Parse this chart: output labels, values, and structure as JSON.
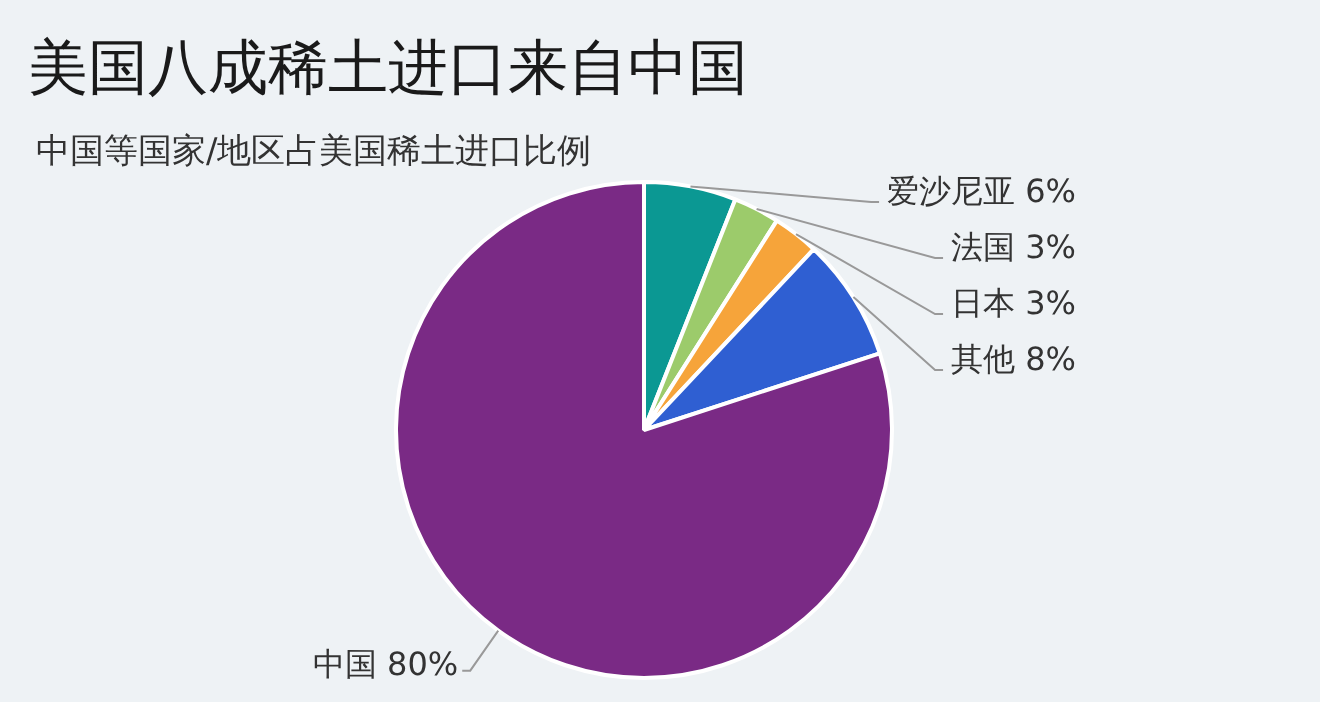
{
  "chart_data": {
    "type": "pie",
    "title": "美国八成稀土进口来自中国",
    "subtitle": "中国等国家/地区占美国稀土进口比例",
    "categories": [
      "爱沙尼亚",
      "法国",
      "日本",
      "其他",
      "中国"
    ],
    "values": [
      6,
      3,
      3,
      8,
      80
    ],
    "colors": [
      "#0b9893",
      "#9ccb6b",
      "#f6a43a",
      "#2f5fd2",
      "#7a2a85"
    ],
    "value_labels": [
      "6%",
      "3%",
      "3%",
      "8%",
      "80%"
    ]
  }
}
